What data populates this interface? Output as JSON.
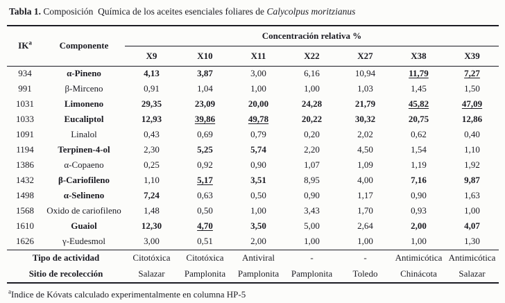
{
  "title": {
    "label_bold": "Tabla 1.",
    "text": " Composición  Química de los aceites esenciales foliares de ",
    "species_italic": "Calycolpus moritzianus"
  },
  "table": {
    "header": {
      "ik_label": "IK",
      "ik_sup": "a",
      "component_label": "Componente",
      "span_label": "Concentración relativa %",
      "sample_columns": [
        "X9",
        "X10",
        "X11",
        "X22",
        "X27",
        "X38",
        "X39"
      ]
    },
    "rows": [
      {
        "ik": "934",
        "name": "α-Pineno",
        "bold_name": true,
        "values": [
          {
            "v": "4,13",
            "s": "b"
          },
          {
            "v": "3,87",
            "s": "b"
          },
          {
            "v": "3,00",
            "s": "r"
          },
          {
            "v": "6,16",
            "s": "r"
          },
          {
            "v": "10,94",
            "s": "r"
          },
          {
            "v": "11,79",
            "s": "bu"
          },
          {
            "v": "7,27",
            "s": "bu"
          }
        ]
      },
      {
        "ik": "991",
        "name": "β-Mirceno",
        "bold_name": false,
        "values": [
          {
            "v": "0,91",
            "s": "r"
          },
          {
            "v": "1,04",
            "s": "r"
          },
          {
            "v": "1,00",
            "s": "r"
          },
          {
            "v": "1,00",
            "s": "r"
          },
          {
            "v": "1,03",
            "s": "r"
          },
          {
            "v": "1,45",
            "s": "r"
          },
          {
            "v": "1,50",
            "s": "r"
          }
        ]
      },
      {
        "ik": "1031",
        "name": "Limoneno",
        "bold_name": true,
        "values": [
          {
            "v": "29,35",
            "s": "b"
          },
          {
            "v": "23,09",
            "s": "b"
          },
          {
            "v": "20,00",
            "s": "b"
          },
          {
            "v": "24,28",
            "s": "b"
          },
          {
            "v": "21,79",
            "s": "b"
          },
          {
            "v": "45,82",
            "s": "bu"
          },
          {
            "v": "47,09",
            "s": "bu"
          }
        ]
      },
      {
        "ik": "1033",
        "name": "Eucaliptol",
        "bold_name": true,
        "values": [
          {
            "v": "12,93",
            "s": "b"
          },
          {
            "v": "39,86",
            "s": "bu"
          },
          {
            "v": "49,78",
            "s": "bu"
          },
          {
            "v": "20,22",
            "s": "b"
          },
          {
            "v": "30,32",
            "s": "b"
          },
          {
            "v": "20,75",
            "s": "b"
          },
          {
            "v": "12,86",
            "s": "b"
          }
        ]
      },
      {
        "ik": "1091",
        "name": "Linalol",
        "bold_name": false,
        "values": [
          {
            "v": "0,43",
            "s": "r"
          },
          {
            "v": "0,69",
            "s": "r"
          },
          {
            "v": "0,79",
            "s": "r"
          },
          {
            "v": "0,20",
            "s": "r"
          },
          {
            "v": "2,02",
            "s": "r"
          },
          {
            "v": "0,62",
            "s": "r"
          },
          {
            "v": "0,40",
            "s": "r"
          }
        ]
      },
      {
        "ik": "1194",
        "name": "Terpinen-4-ol",
        "bold_name": true,
        "values": [
          {
            "v": "2,30",
            "s": "r"
          },
          {
            "v": "5,25",
            "s": "b"
          },
          {
            "v": "5,74",
            "s": "b"
          },
          {
            "v": "2,20",
            "s": "r"
          },
          {
            "v": "4,50",
            "s": "r"
          },
          {
            "v": "1,54",
            "s": "r"
          },
          {
            "v": "1,10",
            "s": "r"
          }
        ]
      },
      {
        "ik": "1386",
        "name": "α-Copaeno",
        "bold_name": false,
        "values": [
          {
            "v": "0,25",
            "s": "r"
          },
          {
            "v": "0,92",
            "s": "r"
          },
          {
            "v": "0,90",
            "s": "r"
          },
          {
            "v": "1,07",
            "s": "r"
          },
          {
            "v": "1,09",
            "s": "r"
          },
          {
            "v": "1,19",
            "s": "r"
          },
          {
            "v": "1,92",
            "s": "r"
          }
        ]
      },
      {
        "ik": "1432",
        "name": "β-Cariofileno",
        "bold_name": true,
        "values": [
          {
            "v": "1,10",
            "s": "r"
          },
          {
            "v": "5,17",
            "s": "bu"
          },
          {
            "v": "3,51",
            "s": "b"
          },
          {
            "v": "8,95",
            "s": "r"
          },
          {
            "v": "4,00",
            "s": "r"
          },
          {
            "v": "7,16",
            "s": "b"
          },
          {
            "v": "9,87",
            "s": "b"
          }
        ]
      },
      {
        "ik": "1498",
        "name": "α-Selineno",
        "bold_name": true,
        "values": [
          {
            "v": "7,24",
            "s": "b"
          },
          {
            "v": "0,63",
            "s": "r"
          },
          {
            "v": "0,50",
            "s": "r"
          },
          {
            "v": "0,90",
            "s": "r"
          },
          {
            "v": "1,17",
            "s": "r"
          },
          {
            "v": "0,90",
            "s": "r"
          },
          {
            "v": "1,63",
            "s": "r"
          }
        ]
      },
      {
        "ik": "1568",
        "name": "Oxido de cariofileno",
        "bold_name": false,
        "values": [
          {
            "v": "1,48",
            "s": "r"
          },
          {
            "v": "0,50",
            "s": "r"
          },
          {
            "v": "1,00",
            "s": "r"
          },
          {
            "v": "3,43",
            "s": "r"
          },
          {
            "v": "1,70",
            "s": "r"
          },
          {
            "v": "0,93",
            "s": "r"
          },
          {
            "v": "1,00",
            "s": "r"
          }
        ]
      },
      {
        "ik": "1610",
        "name": "Guaiol",
        "bold_name": true,
        "values": [
          {
            "v": "12,30",
            "s": "b"
          },
          {
            "v": "4,70",
            "s": "bu"
          },
          {
            "v": "3,50",
            "s": "b"
          },
          {
            "v": "5,00",
            "s": "r"
          },
          {
            "v": "2,64",
            "s": "r"
          },
          {
            "v": "2,00",
            "s": "b"
          },
          {
            "v": "4,07",
            "s": "b"
          }
        ]
      },
      {
        "ik": "1626",
        "name": "γ-Eudesmol",
        "bold_name": false,
        "values": [
          {
            "v": "3,00",
            "s": "r"
          },
          {
            "v": "0,51",
            "s": "r"
          },
          {
            "v": "2,00",
            "s": "r"
          },
          {
            "v": "1,00",
            "s": "r"
          },
          {
            "v": "1,00",
            "s": "r"
          },
          {
            "v": "1,00",
            "s": "r"
          },
          {
            "v": "1,30",
            "s": "r"
          }
        ]
      }
    ],
    "footer_rows": [
      {
        "label": "Tipo de actividad",
        "cells": [
          "Citotóxica",
          "Citotóxica",
          "Antiviral",
          "-",
          "-",
          "Antimicótica",
          "Antimicótica"
        ]
      },
      {
        "label": "Sitio de recolección",
        "cells": [
          "Salazar",
          "Pamplonita",
          "Pamplonita",
          "Pamplonita",
          "Toledo",
          "Chinácota",
          "Salazar"
        ]
      }
    ]
  },
  "footnote": {
    "sup": "a",
    "text": "Indice de Kóvats calculado experimentalmente en columna HP-5"
  }
}
